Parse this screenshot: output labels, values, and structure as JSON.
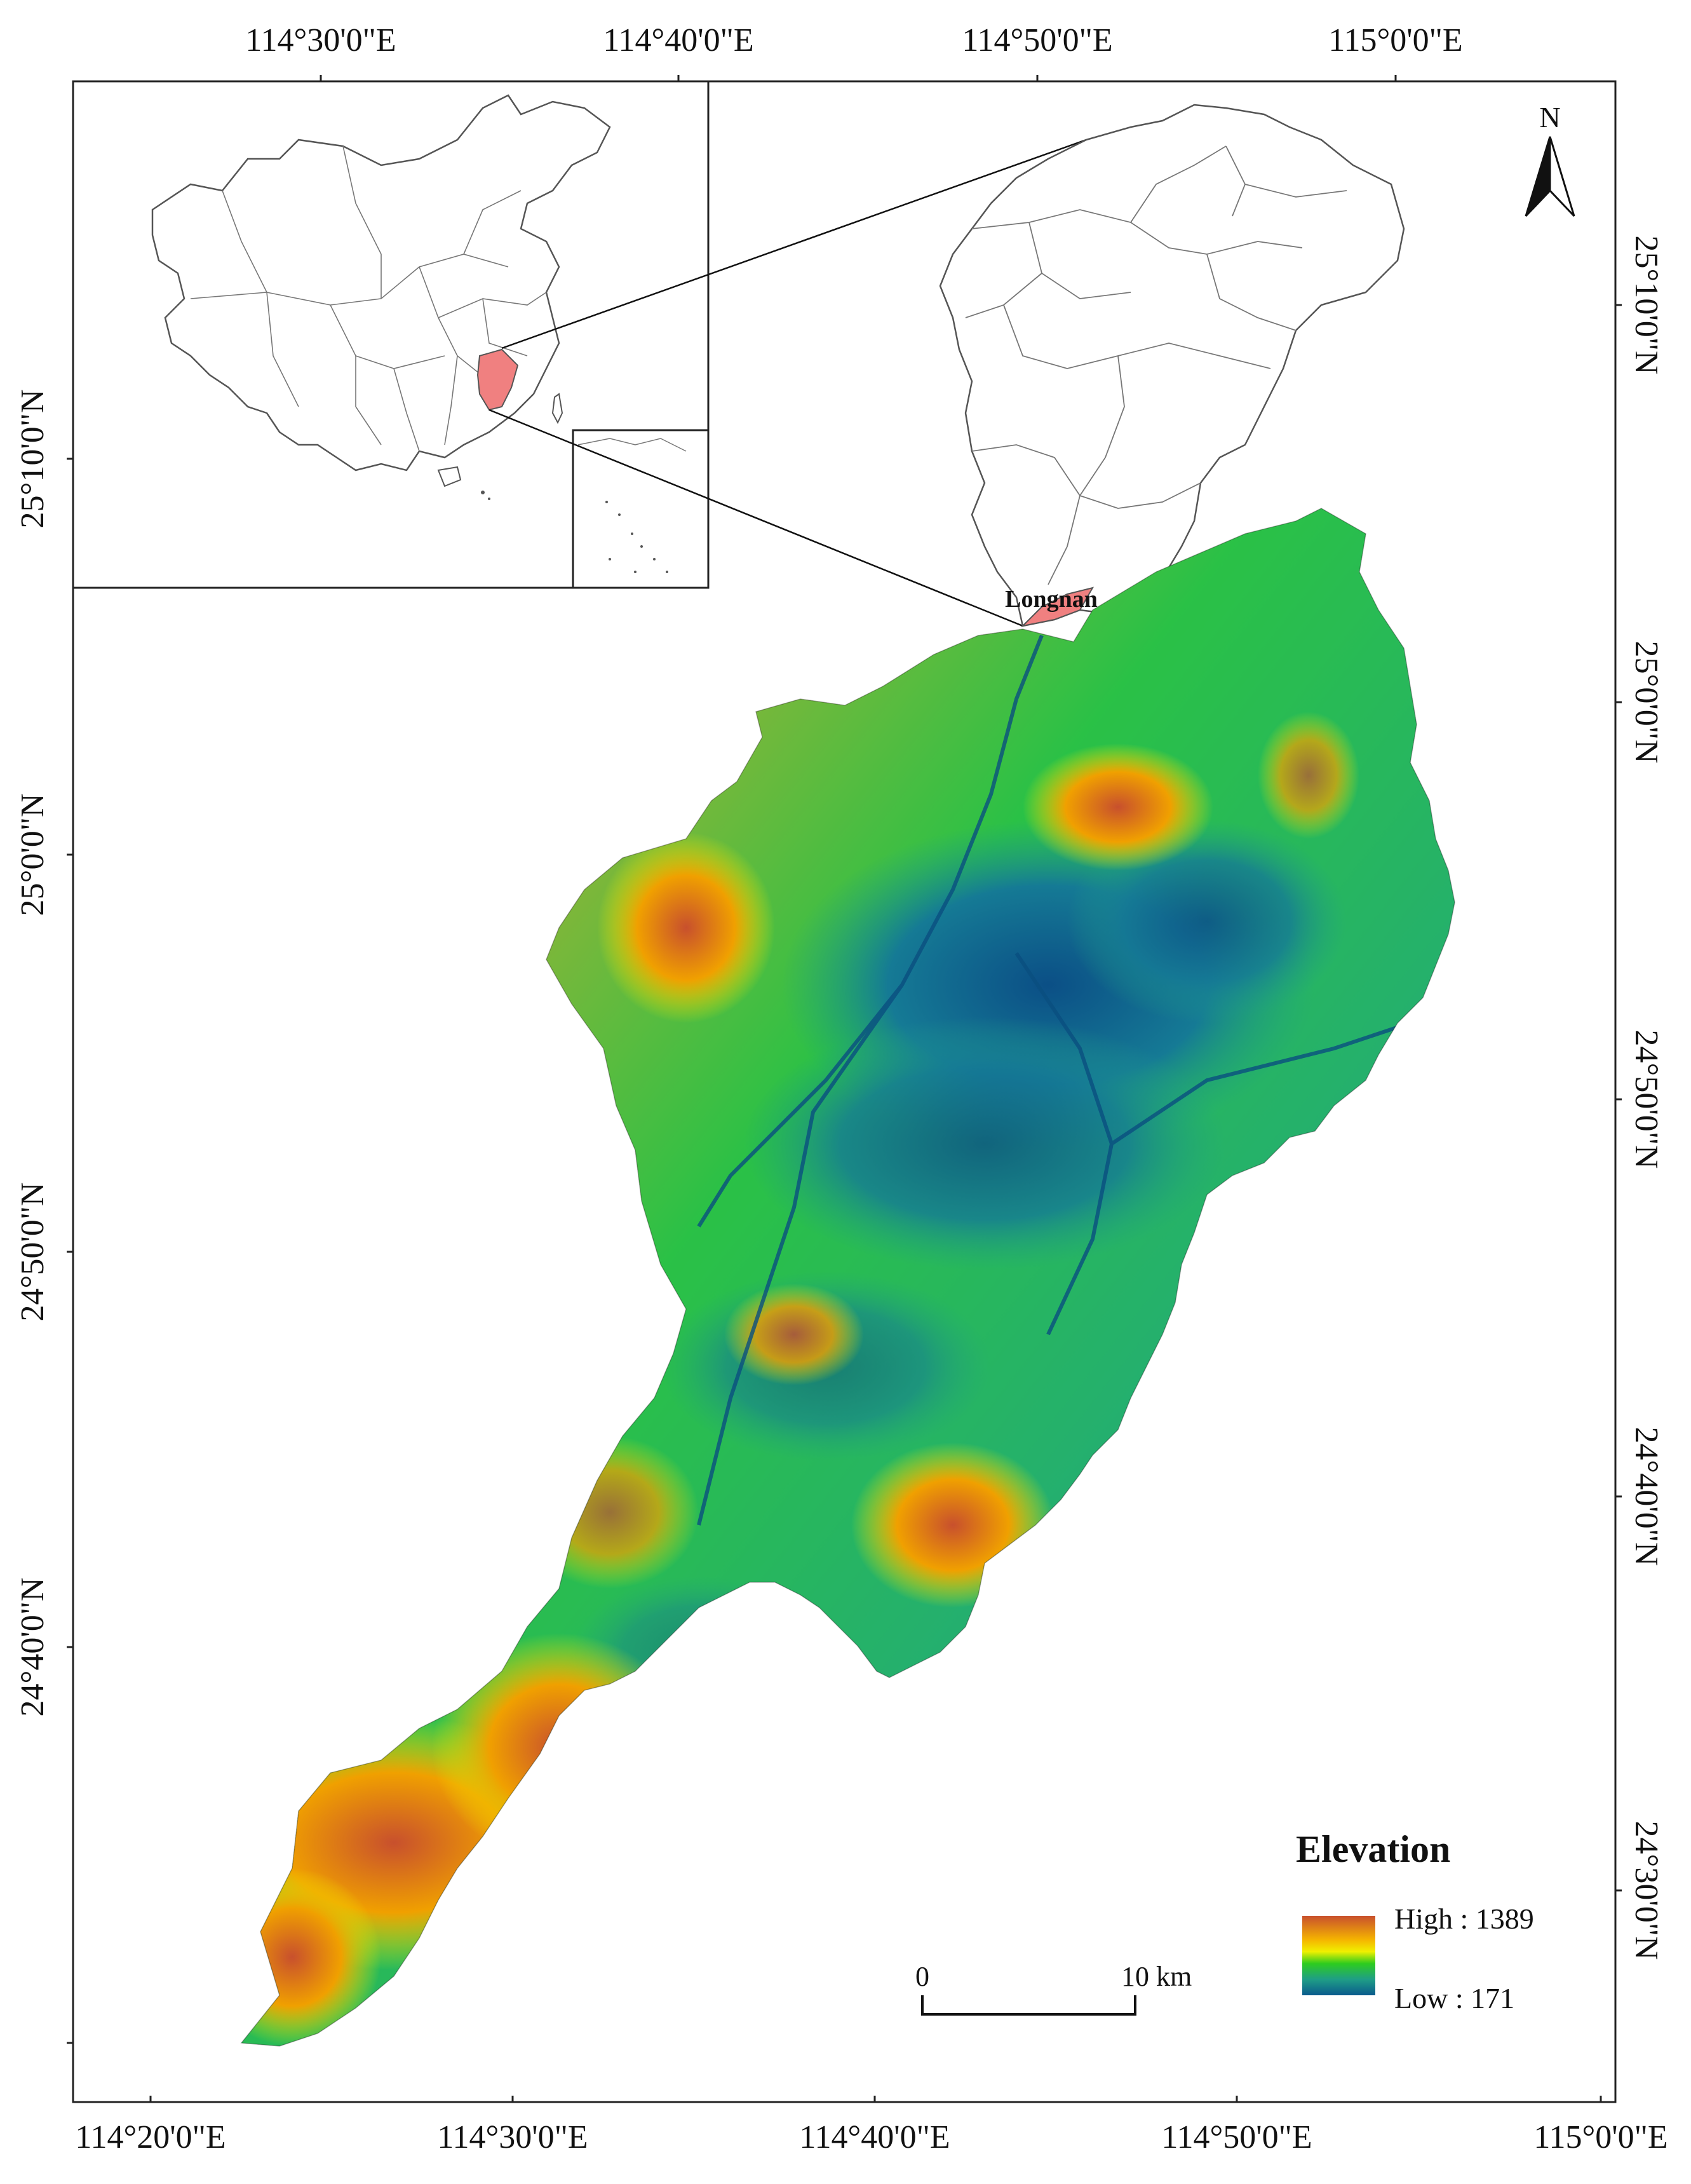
{
  "top_lon_labels": [
    "114°30'0\"E",
    "114°40'0\"E",
    "114°50'0\"E",
    "115°0'0\"E"
  ],
  "bottom_lon_labels": [
    "114°20'0\"E",
    "114°30'0\"E",
    "114°40'0\"E",
    "114°50'0\"E",
    "115°0'0\"E"
  ],
  "left_lat_labels": [
    "25°10'0\"N",
    "25°0'0\"N",
    "24°50'0\"N",
    "24°40'0\"N"
  ],
  "right_lat_labels": [
    "25°10'0\"N",
    "25°0'0\"N",
    "24°50'0\"N",
    "24°40'0\"N",
    "24°30'0\"N"
  ],
  "north_arrow": {
    "label": "N",
    "icon": "north-arrow-icon"
  },
  "inset": {
    "place_label": "Longnan",
    "highlight_color": "#f08080"
  },
  "legend": {
    "title": "Elevation",
    "high_label": "High : 1389",
    "low_label": "Low : 171",
    "ramp_colors": [
      "#c8502d",
      "#f5b400",
      "#f0f000",
      "#2ecc1e",
      "#1f9e86",
      "#0a5a8c"
    ]
  },
  "scale_bar": {
    "start": "0",
    "end": "10",
    "unit": "km"
  }
}
